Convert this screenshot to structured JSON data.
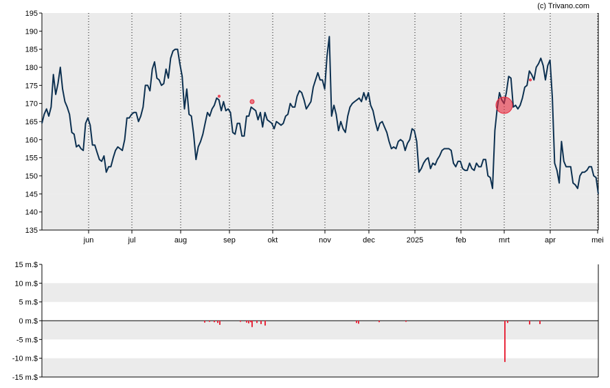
{
  "credit": "(c) Trivano.com",
  "colors": {
    "band": "#ebebeb",
    "price_line": "#0c3050",
    "insider_bar": "#e8283c",
    "marker": "#e8283c"
  },
  "chart_data": [
    {
      "type": "line",
      "title": "",
      "xlabel": "",
      "ylabel": "",
      "ylim": [
        135,
        195
      ],
      "y_ticks": [
        "135",
        "140",
        "145",
        "150",
        "155",
        "160",
        "165",
        "170",
        "175",
        "180",
        "185",
        "190",
        "195"
      ],
      "x_ticks": [
        "jun",
        "jul",
        "aug",
        "sep",
        "okt",
        "nov",
        "dec",
        "2025",
        "feb",
        "mrt",
        "apr",
        "mei"
      ],
      "grid": "alternating horizontal bands, dotted vertical month lines",
      "series": [
        {
          "values": [
            164.5,
            167,
            168.5,
            166.5,
            169,
            178,
            172.5,
            175.5,
            180,
            174,
            170.5,
            169,
            167,
            162,
            161.5,
            158,
            158.5,
            157.5,
            157,
            164.5,
            166,
            164,
            158.5,
            158.5,
            156.5,
            154.5,
            154,
            155.5,
            151,
            152.5,
            152.5,
            155,
            157,
            158,
            157.5,
            157,
            160,
            166,
            166,
            167,
            167.5,
            167.5,
            165,
            166.5,
            169,
            175,
            175,
            173.5,
            179.5,
            181.5,
            177,
            176.5,
            175,
            175.5,
            179.5,
            177,
            182.5,
            184.5,
            185,
            185,
            181,
            177.5,
            168.5,
            174,
            167,
            166.5,
            161.5,
            154.5,
            158,
            159.5,
            161.5,
            164.5,
            167.5,
            166.5,
            168.5,
            169.5,
            171.5,
            171,
            168,
            170.5,
            168,
            168.5,
            167.5,
            162,
            161.5,
            164.5,
            164.5,
            161,
            161,
            166.5,
            166.5,
            169,
            168.5,
            168,
            165.5,
            167.5,
            163.5,
            167.5,
            165.5,
            165,
            164.5,
            163,
            165,
            164.5,
            164,
            164.5,
            166.5,
            167,
            170,
            169,
            169,
            172,
            173.5,
            173,
            171,
            168.5,
            169.5,
            170.5,
            174.5,
            176.5,
            178.5,
            176.5,
            176.5,
            174,
            183,
            188.5,
            166.5,
            169.5,
            167,
            162.5,
            165,
            163,
            162,
            166.5,
            169,
            170,
            170.5,
            171,
            171.5,
            170.5,
            173,
            171,
            173,
            169.5,
            168,
            165,
            162.5,
            164.5,
            165,
            163.5,
            162,
            159.5,
            157.5,
            158,
            157.5,
            159.5,
            160,
            159.5,
            157,
            159,
            160,
            163,
            162.5,
            159.5,
            151,
            152,
            153.5,
            154.5,
            155,
            152,
            153.5,
            153,
            154.5,
            155.5,
            157,
            157.5,
            157.5,
            157.5,
            157,
            153.5,
            152.5,
            154,
            154,
            152,
            151.5,
            151.5,
            153.5,
            152,
            151.5,
            153.5,
            152.5,
            152.5,
            154.5,
            154.5,
            150,
            149.5,
            146.5,
            162.5,
            168.5,
            173,
            171,
            170,
            173,
            177.5,
            177,
            169,
            169.5,
            168.5,
            169.5,
            171.5,
            174.5,
            175,
            179,
            178,
            176.5,
            180,
            181,
            182.5,
            180.5,
            176.5,
            180.5,
            182,
            171.5,
            153.5,
            151.5,
            148,
            159.5,
            154,
            152.5,
            152.5,
            152.5,
            148,
            147.5,
            146.5,
            150,
            151,
            151,
            151.5,
            152.5,
            152.5,
            150,
            149.5,
            145
          ],
          "markers": [
            {
              "x": 734,
              "value": 169.5,
              "size": "large"
            },
            {
              "x": 367,
              "value": 170.5,
              "size": "small"
            },
            {
              "x": 319,
              "value": 172,
              "size": "tiny"
            },
            {
              "x": 772,
              "value": 176.5,
              "size": "tiny"
            }
          ]
        }
      ]
    },
    {
      "type": "bar",
      "title": "",
      "xlabel": "",
      "ylabel": "",
      "ylim": [
        -15,
        15
      ],
      "y_ticks": [
        "15 m.$",
        "10 m.$",
        "5 m.$",
        "0 m.$",
        "-5 m.$",
        "-10 m.$",
        "-15 m.$"
      ],
      "grid": "alternating horizontal bands",
      "bars": [
        {
          "x": 298,
          "value": -0.5
        },
        {
          "x": 305,
          "value": -0.3
        },
        {
          "x": 312,
          "value": -0.4
        },
        {
          "x": 317,
          "value": -0.6
        },
        {
          "x": 320,
          "value": -1.1
        },
        {
          "x": 350,
          "value": -0.3
        },
        {
          "x": 359,
          "value": -0.5
        },
        {
          "x": 362,
          "value": -0.7
        },
        {
          "x": 365,
          "value": -0.4
        },
        {
          "x": 367,
          "value": -1.7
        },
        {
          "x": 374,
          "value": -0.6
        },
        {
          "x": 380,
          "value": -0.9
        },
        {
          "x": 386,
          "value": -1.3
        },
        {
          "x": 519,
          "value": -0.6
        },
        {
          "x": 522,
          "value": -0.8
        },
        {
          "x": 552,
          "value": -0.4
        },
        {
          "x": 591,
          "value": -0.3
        },
        {
          "x": 735,
          "value": -11.0
        },
        {
          "x": 739,
          "value": -0.6
        },
        {
          "x": 771,
          "value": -1.0
        },
        {
          "x": 786,
          "value": -0.9
        }
      ]
    }
  ]
}
